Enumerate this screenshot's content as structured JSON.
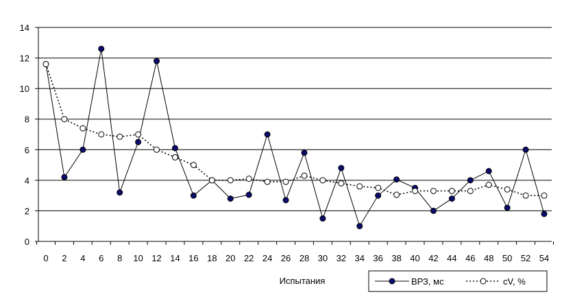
{
  "chart_data": {
    "type": "line",
    "title": "",
    "xlabel": "Испытания",
    "ylabel": "",
    "x": [
      0,
      2,
      4,
      6,
      8,
      10,
      12,
      14,
      16,
      18,
      20,
      22,
      24,
      26,
      28,
      30,
      32,
      34,
      36,
      38,
      40,
      42,
      44,
      46,
      48,
      50,
      52,
      54
    ],
    "xlim": [
      0,
      54
    ],
    "ylim": [
      0,
      14
    ],
    "xticks": [
      "0",
      "2",
      "4",
      "6",
      "8",
      "10",
      "12",
      "14",
      "16",
      "18",
      "20",
      "22",
      "24",
      "26",
      "28",
      "30",
      "32",
      "34",
      "36",
      "38",
      "40",
      "42",
      "44",
      "46",
      "48",
      "50",
      "52",
      "54"
    ],
    "yticks": [
      "0",
      "2",
      "4",
      "6",
      "8",
      "10",
      "12",
      "14"
    ],
    "grid": "horizontal",
    "legend_position": "bottom-right",
    "series": [
      {
        "name": "ВРЗ, мс",
        "style": "solid line, filled dark-blue circle markers",
        "color": "#0b0b6e",
        "values": [
          11.6,
          4.2,
          6.0,
          12.6,
          3.2,
          6.5,
          11.8,
          6.1,
          3.0,
          4.0,
          2.8,
          3.05,
          7.0,
          2.7,
          5.8,
          1.5,
          4.8,
          1.0,
          3.0,
          4.05,
          3.5,
          2.0,
          2.8,
          4.0,
          4.6,
          2.2,
          6.0,
          1.8
        ]
      },
      {
        "name": "cV, %",
        "style": "dotted line, hollow circle markers",
        "color": "#000000",
        "values": [
          11.6,
          8.0,
          7.4,
          7.0,
          6.85,
          7.0,
          6.0,
          5.5,
          5.0,
          4.0,
          4.0,
          4.1,
          3.9,
          3.9,
          4.3,
          4.0,
          3.8,
          3.6,
          3.5,
          3.05,
          3.3,
          3.3,
          3.3,
          3.3,
          3.7,
          3.4,
          3.0,
          3.0
        ]
      }
    ]
  }
}
